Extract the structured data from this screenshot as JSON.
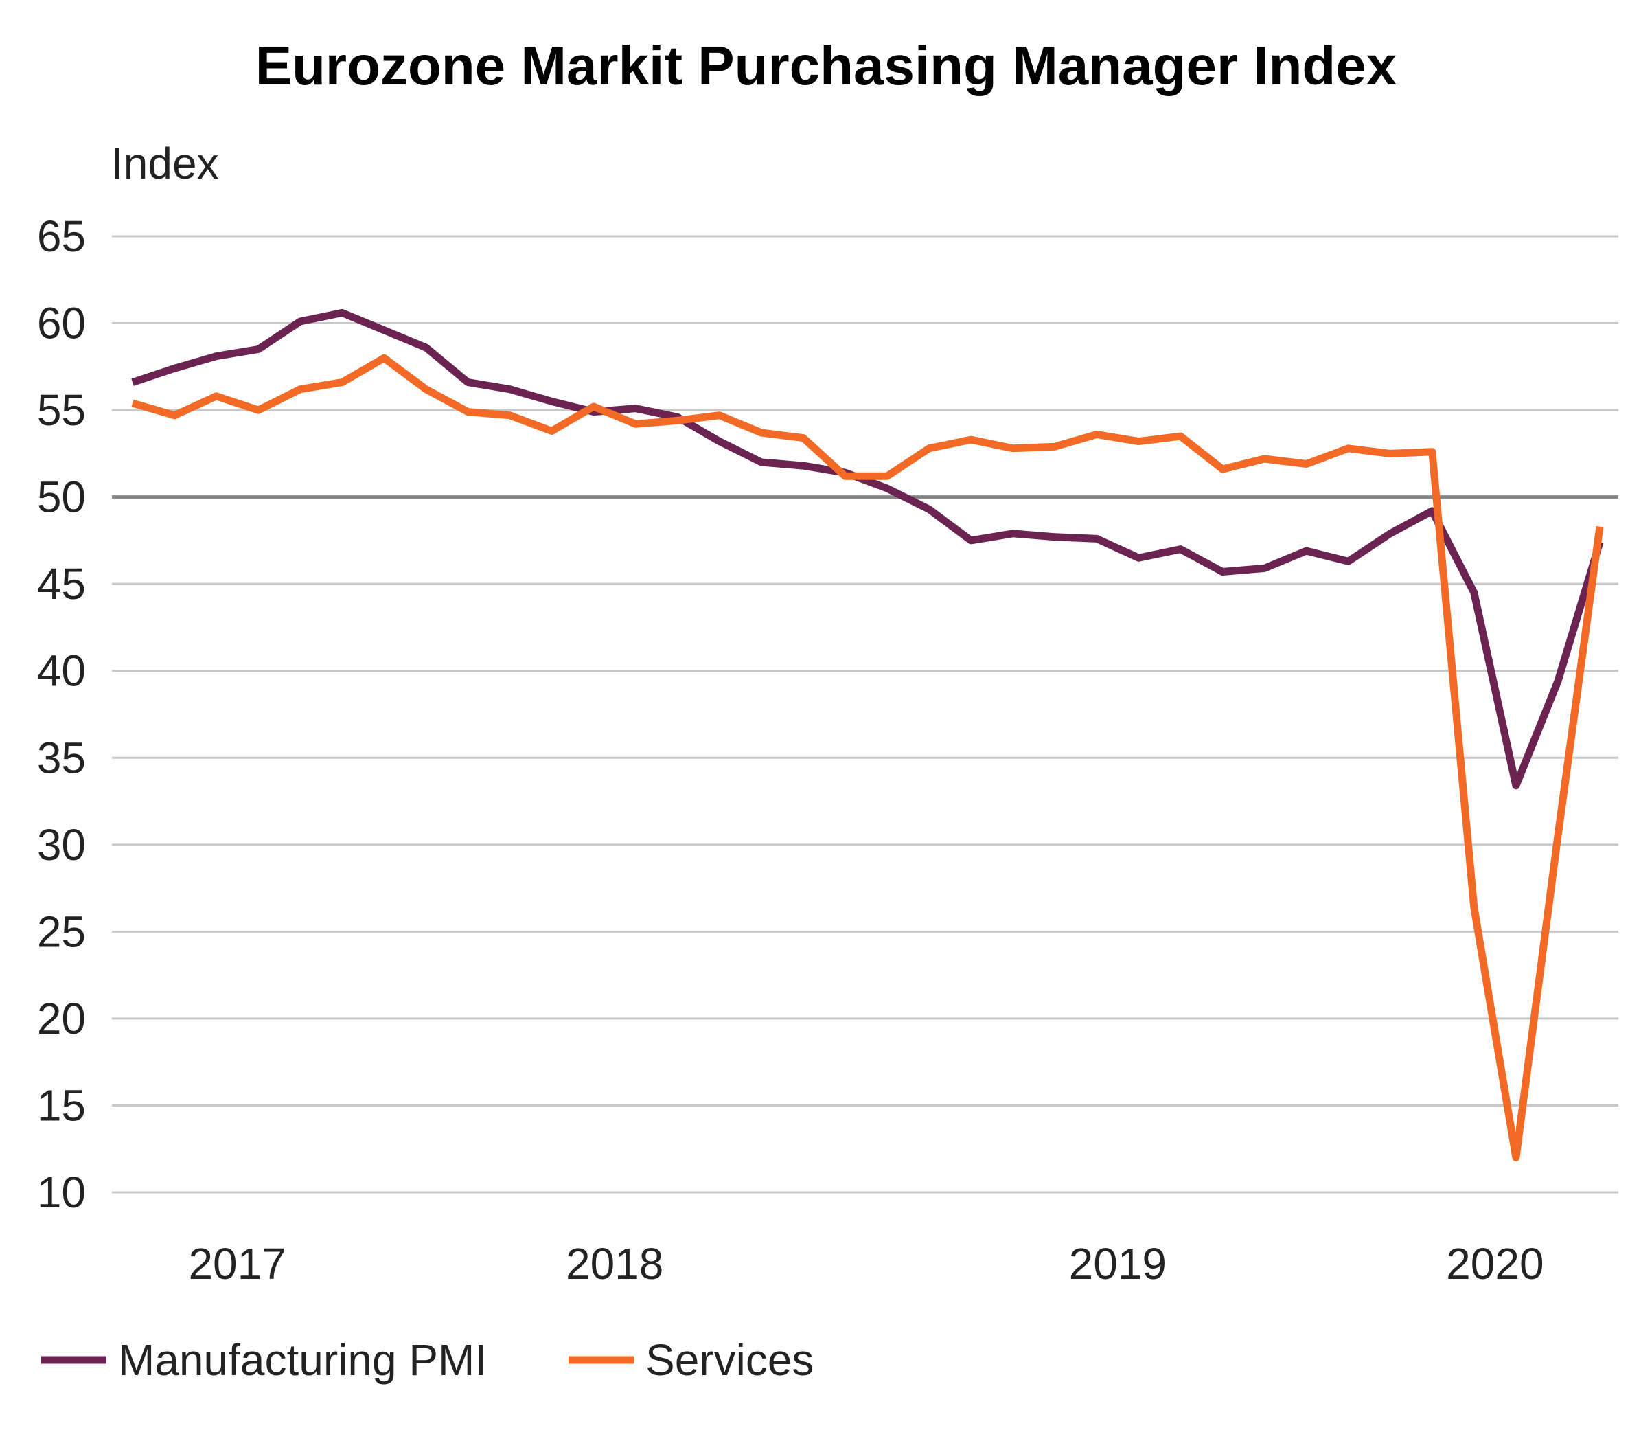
{
  "chart_data": {
    "type": "line",
    "title": "Eurozone Markit Purchasing Manager Index",
    "ylabel": "Index",
    "xlabel": "",
    "ylim": [
      10,
      65
    ],
    "yticks": [
      10,
      15,
      20,
      25,
      30,
      35,
      40,
      45,
      50,
      55,
      60,
      65
    ],
    "x_tick_labels": [
      "2017",
      "2018",
      "2019",
      "2020"
    ],
    "reference_line": 50,
    "grid": true,
    "legend_position": "bottom-left",
    "colors": {
      "Manufacturing PMI": "#6b2451",
      "Services": "#f26a25",
      "grid": "#c8c8c8",
      "reference": "#888888"
    },
    "series": [
      {
        "name": "Manufacturing PMI",
        "values": [
          56.6,
          57.4,
          58.1,
          58.5,
          60.1,
          60.6,
          59.6,
          58.6,
          56.6,
          56.2,
          55.5,
          54.9,
          55.1,
          54.6,
          53.2,
          52.0,
          51.8,
          51.4,
          50.5,
          49.3,
          47.5,
          47.9,
          47.7,
          47.6,
          46.5,
          47.0,
          45.7,
          45.9,
          46.9,
          46.3,
          47.9,
          49.2,
          44.5,
          33.4,
          39.4,
          47.4
        ]
      },
      {
        "name": "Services",
        "values": [
          55.4,
          54.7,
          55.8,
          55.0,
          56.2,
          56.6,
          58.0,
          56.2,
          54.9,
          54.7,
          53.8,
          55.2,
          54.2,
          54.4,
          54.7,
          53.7,
          53.4,
          51.2,
          51.2,
          52.8,
          53.3,
          52.8,
          52.9,
          53.6,
          53.2,
          53.5,
          51.6,
          52.2,
          51.9,
          52.8,
          52.5,
          52.6,
          26.4,
          12.0,
          30.5,
          48.3
        ]
      }
    ]
  }
}
